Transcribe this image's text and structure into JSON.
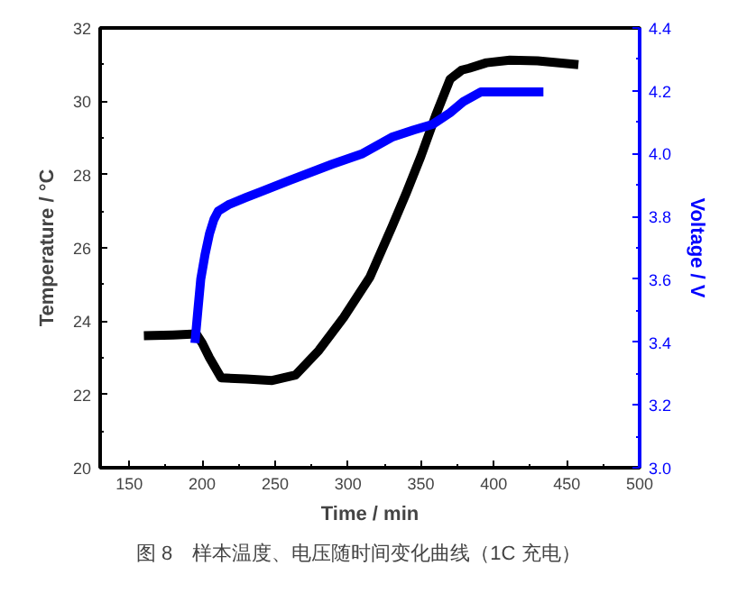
{
  "chart_data": {
    "type": "line",
    "xlabel": "Time / min",
    "ylabel": "Temperature / °C",
    "y2label": "Voltage / V",
    "xlim": [
      130,
      500
    ],
    "xticks": [
      150,
      200,
      250,
      300,
      350,
      400,
      450,
      500
    ],
    "ylim": [
      20,
      32
    ],
    "yticks": [
      20,
      22,
      24,
      26,
      28,
      30,
      32
    ],
    "y2lim": [
      3.0,
      4.4
    ],
    "y2ticks": [
      {
        "value": 3.0,
        "label": "3.0"
      },
      3.2,
      3.4,
      3.6,
      3.8,
      {
        "value": 4.0,
        "label": "4.0"
      },
      4.2,
      4.4
    ],
    "grid": false,
    "marker": "none",
    "line_style": "solid",
    "series": [
      {
        "color": "#000000",
        "x": [
          160,
          180,
          196,
          200,
          205,
          213,
          230,
          248,
          264,
          280,
          297,
          315,
          330,
          340,
          350,
          360,
          370,
          378,
          383,
          395,
          411,
          430,
          458
        ],
        "values": [
          23.6,
          23.62,
          23.65,
          23.4,
          23.0,
          22.45,
          22.42,
          22.38,
          22.53,
          23.2,
          24.1,
          25.2,
          26.56,
          27.5,
          28.5,
          29.6,
          30.6,
          30.85,
          30.9,
          31.05,
          31.12,
          31.1,
          31.0
        ]
      },
      {
        "color": "#0000ff",
        "axis": "y2",
        "x": [
          195,
          197,
          199,
          202,
          205,
          208,
          211,
          218,
          230,
          240,
          260,
          289,
          310,
          330,
          345,
          358,
          370,
          379,
          391,
          410,
          434
        ],
        "values": [
          3.397,
          3.5,
          3.6,
          3.68,
          3.745,
          3.79,
          3.817,
          3.837,
          3.86,
          3.878,
          3.915,
          3.966,
          4.0,
          4.052,
          4.075,
          4.093,
          4.13,
          4.165,
          4.196,
          4.196,
          4.196
        ]
      }
    ],
    "annotations": [
      "图 8　样本温度、电压随时间变化曲线（1C 充电）"
    ]
  }
}
